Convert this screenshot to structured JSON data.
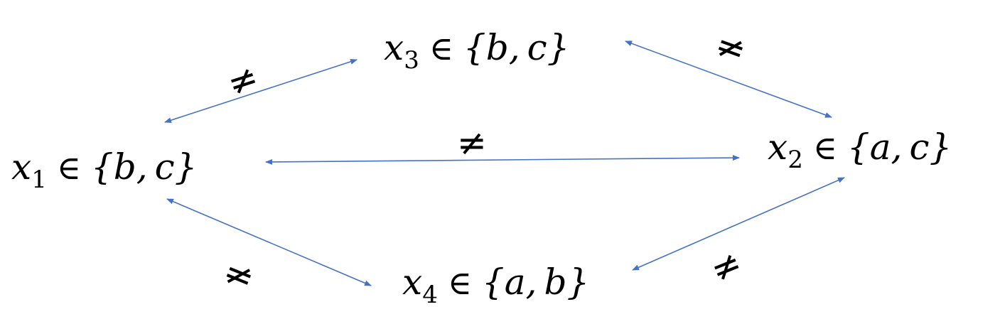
{
  "nodes": [
    {
      "id": "x1",
      "var": "x",
      "sub": "1",
      "set_open": "{",
      "elements": [
        "b",
        "c"
      ],
      "set_close": "}",
      "op": "∈"
    },
    {
      "id": "x2",
      "var": "x",
      "sub": "2",
      "set_open": "{",
      "elements": [
        "a",
        "c"
      ],
      "set_close": "}",
      "op": "∈"
    },
    {
      "id": "x3",
      "var": "x",
      "sub": "3",
      "set_open": "{",
      "elements": [
        "b",
        "c"
      ],
      "set_close": "}",
      "op": "∈"
    },
    {
      "id": "x4",
      "var": "x",
      "sub": "4",
      "set_open": "{",
      "elements": [
        "a",
        "b"
      ],
      "set_close": "}",
      "op": "∈"
    }
  ],
  "edges": [
    {
      "from": "x1",
      "to": "x3",
      "label": "≠"
    },
    {
      "from": "x3",
      "to": "x2",
      "label": "≠"
    },
    {
      "from": "x1",
      "to": "x2",
      "label": "≠"
    },
    {
      "from": "x1",
      "to": "x4",
      "label": "≠"
    },
    {
      "from": "x4",
      "to": "x2",
      "label": "≠"
    }
  ],
  "colors": {
    "edge": "#4472c4",
    "text": "#000000"
  }
}
